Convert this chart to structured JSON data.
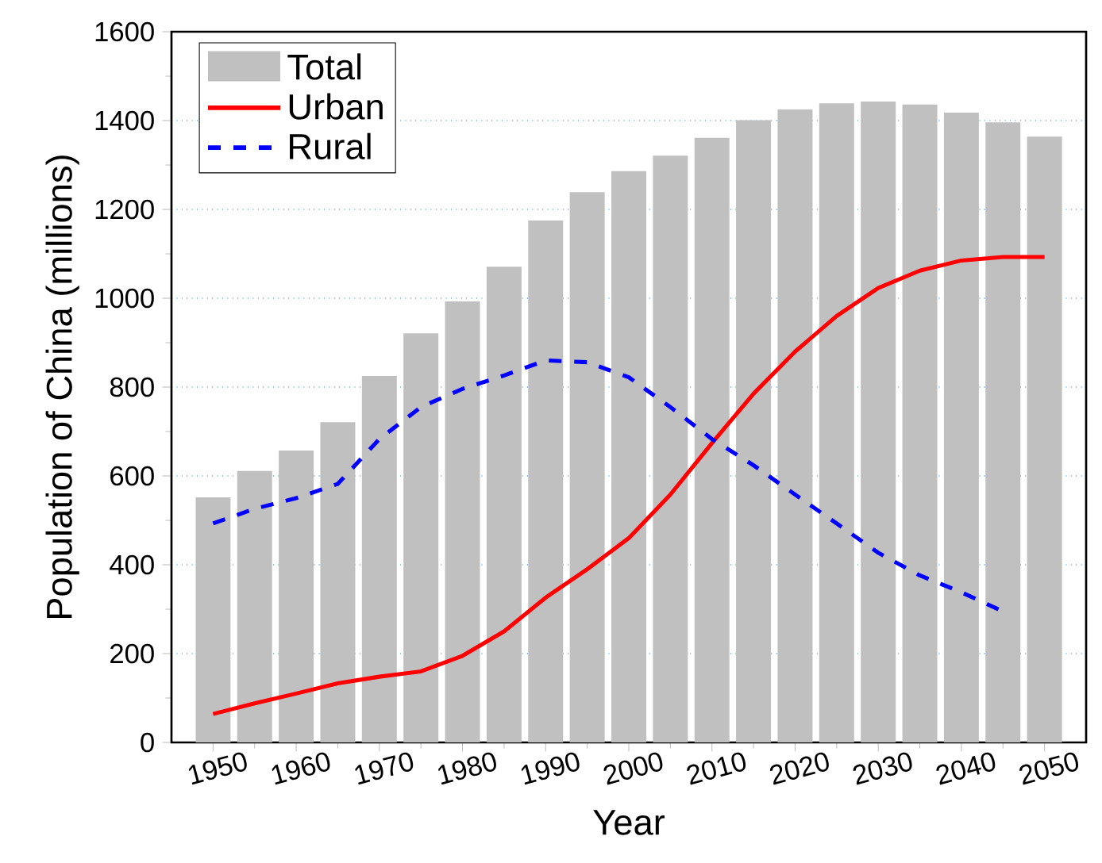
{
  "chart_data": {
    "type": "bar",
    "xlabel": "Year",
    "ylabel": "Population of China (millions)",
    "x": [
      1950,
      1955,
      1960,
      1965,
      1970,
      1975,
      1980,
      1985,
      1990,
      1995,
      2000,
      2005,
      2010,
      2015,
      2020,
      2025,
      2030,
      2035,
      2040,
      2045,
      2050
    ],
    "series": [
      {
        "name": "Total",
        "color": "#c0c0c0",
        "values": [
          552,
          611,
          657,
          721,
          825,
          921,
          993,
          1071,
          1175,
          1239,
          1286,
          1321,
          1361,
          1401,
          1425,
          1439,
          1443,
          1436,
          1418,
          1396,
          1364
        ]
      },
      {
        "name": "Urban",
        "type": "line",
        "color": "#ff0000",
        "line_style": "solid",
        "values": [
          64,
          88,
          110,
          133,
          148,
          160,
          195,
          250,
          326,
          390,
          460,
          558,
          674,
          785,
          880,
          960,
          1023,
          1062,
          1085,
          1093,
          1093
        ]
      },
      {
        "name": "Rural",
        "type": "line",
        "color": "#0000ff",
        "line_style": "dashed",
        "values": [
          493,
          526,
          550,
          582,
          683,
          755,
          796,
          826,
          860,
          856,
          822,
          755,
          683,
          624,
          558,
          493,
          427,
          376,
          338,
          295,
          null
        ]
      }
    ],
    "xlim": [
      1945,
      2055
    ],
    "ylim": [
      0,
      1600
    ],
    "xticks": [
      1950,
      1960,
      1970,
      1980,
      1990,
      2000,
      2010,
      2020,
      2030,
      2040,
      2050
    ],
    "yticks": [
      0,
      200,
      400,
      600,
      800,
      1000,
      1200,
      1400,
      1600
    ],
    "grid": "y",
    "legend": "top left"
  }
}
